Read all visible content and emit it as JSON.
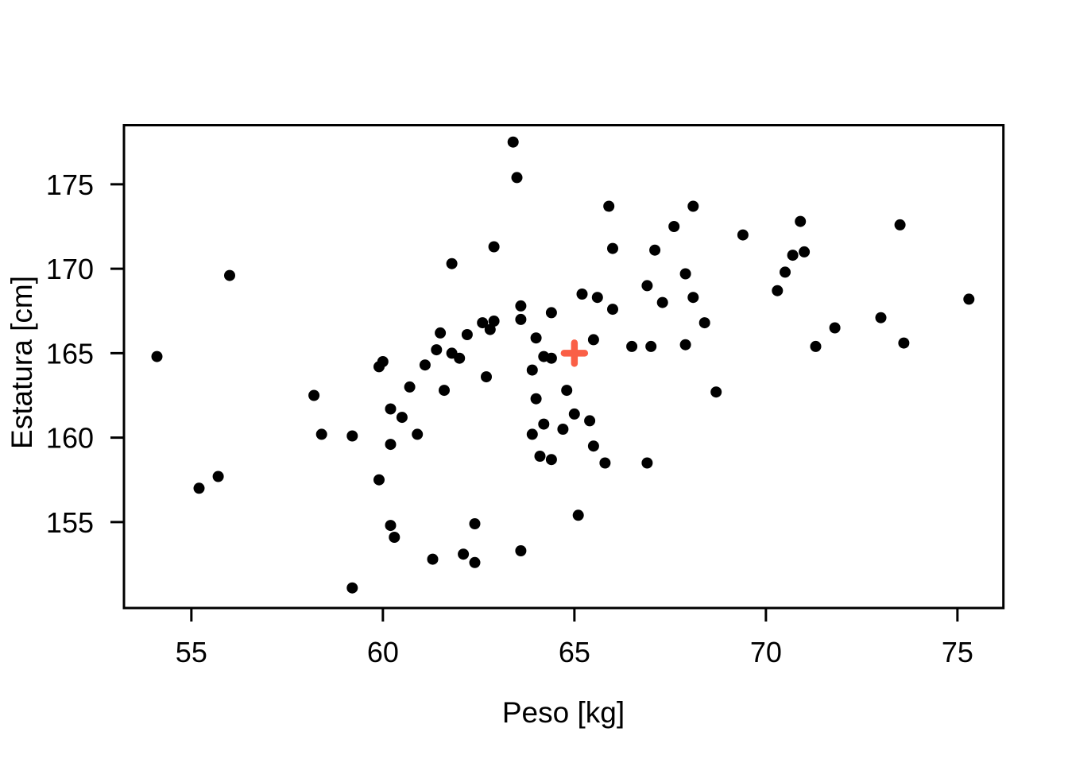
{
  "page": {
    "background": "#FFFFFF",
    "foreground": "#000000"
  },
  "chart_data": {
    "type": "scatter",
    "title": "",
    "xlabel": "Peso [kg]",
    "ylabel": "Estatura [cm]",
    "x_ticks": [
      55,
      60,
      65,
      70,
      75
    ],
    "y_ticks": [
      155,
      160,
      165,
      170,
      175
    ],
    "xlim": [
      53.24,
      76.2
    ],
    "ylim": [
      149.91,
      178.5
    ],
    "grid": false,
    "legend": "none",
    "point_color": "#000000",
    "point_radius_px": 7,
    "box_color": "#000000",
    "points": [
      [
        54.1,
        164.8
      ],
      [
        55.2,
        157.0
      ],
      [
        55.7,
        157.7
      ],
      [
        56.0,
        169.6
      ],
      [
        58.2,
        162.5
      ],
      [
        58.4,
        160.2
      ],
      [
        59.2,
        160.1
      ],
      [
        59.2,
        151.1
      ],
      [
        59.9,
        157.5
      ],
      [
        59.9,
        164.2
      ],
      [
        60.0,
        164.5
      ],
      [
        60.2,
        161.7
      ],
      [
        60.2,
        159.6
      ],
      [
        60.2,
        154.8
      ],
      [
        60.3,
        154.1
      ],
      [
        60.5,
        161.2
      ],
      [
        60.7,
        163.0
      ],
      [
        60.9,
        160.2
      ],
      [
        61.1,
        164.3
      ],
      [
        61.3,
        152.8
      ],
      [
        61.4,
        165.2
      ],
      [
        61.5,
        166.2
      ],
      [
        61.6,
        162.8
      ],
      [
        61.8,
        170.3
      ],
      [
        61.8,
        165.0
      ],
      [
        62.0,
        164.7
      ],
      [
        62.1,
        153.1
      ],
      [
        62.2,
        166.1
      ],
      [
        62.4,
        154.9
      ],
      [
        62.4,
        152.6
      ],
      [
        62.6,
        166.8
      ],
      [
        62.7,
        163.6
      ],
      [
        62.8,
        166.4
      ],
      [
        62.9,
        166.9
      ],
      [
        62.9,
        171.3
      ],
      [
        63.4,
        177.5
      ],
      [
        63.5,
        175.4
      ],
      [
        63.6,
        167.8
      ],
      [
        63.6,
        167.0
      ],
      [
        63.6,
        153.3
      ],
      [
        63.9,
        164.0
      ],
      [
        63.9,
        160.2
      ],
      [
        64.0,
        162.3
      ],
      [
        64.0,
        165.9
      ],
      [
        64.1,
        158.9
      ],
      [
        64.2,
        160.8
      ],
      [
        64.2,
        164.8
      ],
      [
        64.4,
        164.7
      ],
      [
        64.4,
        158.7
      ],
      [
        64.4,
        167.4
      ],
      [
        64.7,
        160.5
      ],
      [
        64.8,
        162.8
      ],
      [
        65.0,
        161.4
      ],
      [
        65.1,
        155.4
      ],
      [
        65.2,
        168.5
      ],
      [
        65.4,
        161.0
      ],
      [
        65.5,
        159.5
      ],
      [
        65.5,
        165.8
      ],
      [
        65.6,
        168.3
      ],
      [
        65.8,
        158.5
      ],
      [
        65.9,
        173.7
      ],
      [
        66.0,
        171.2
      ],
      [
        66.0,
        167.6
      ],
      [
        66.5,
        165.4
      ],
      [
        66.9,
        158.5
      ],
      [
        66.9,
        169.0
      ],
      [
        67.0,
        165.4
      ],
      [
        67.1,
        171.1
      ],
      [
        67.3,
        168.0
      ],
      [
        67.6,
        172.5
      ],
      [
        67.9,
        169.7
      ],
      [
        67.9,
        165.5
      ],
      [
        68.1,
        173.7
      ],
      [
        68.1,
        168.3
      ],
      [
        68.4,
        166.8
      ],
      [
        68.7,
        162.7
      ],
      [
        69.4,
        172.0
      ],
      [
        70.3,
        168.7
      ],
      [
        70.5,
        169.8
      ],
      [
        70.7,
        170.8
      ],
      [
        70.9,
        172.8
      ],
      [
        71.0,
        171.0
      ],
      [
        71.3,
        165.4
      ],
      [
        71.8,
        166.5
      ],
      [
        73.0,
        167.1
      ],
      [
        73.5,
        172.6
      ],
      [
        73.6,
        165.6
      ],
      [
        75.3,
        168.2
      ]
    ],
    "mean_marker": {
      "x": 65,
      "y": 165,
      "symbol": "plus",
      "color": "#FA5F46"
    }
  }
}
